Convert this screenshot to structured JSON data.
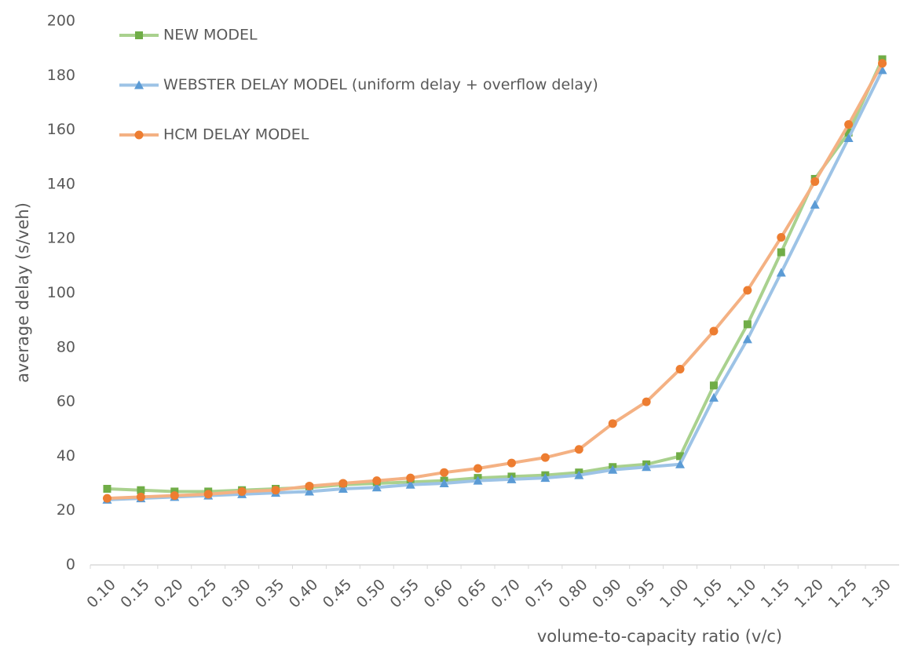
{
  "chart_data": {
    "type": "line",
    "x_label": "volume-to-capacity ratio (v/c)",
    "y_label": "average delay (s/veh)",
    "categories": [
      "0.10",
      "0.15",
      "0.20",
      "0.25",
      "0.30",
      "0.35",
      "0.40",
      "0.45",
      "0.50",
      "0.55",
      "0.60",
      "0.65",
      "0.70",
      "0.75",
      "0.80",
      "0.90",
      "0.95",
      "1.00",
      "1.05",
      "1.10",
      "1.15",
      "1.20",
      "1.25",
      "1.30"
    ],
    "ylim": [
      0,
      200
    ],
    "yticks": [
      0,
      20,
      40,
      60,
      80,
      100,
      120,
      140,
      160,
      180,
      200
    ],
    "grid": false,
    "legend": "top-left",
    "series": [
      {
        "name": "NEW MODEL",
        "color": "#70ad47",
        "line_color": "#a9d18e",
        "marker": "square",
        "values": [
          28,
          27.5,
          27,
          27,
          27.5,
          28,
          28.5,
          29.5,
          30,
          30.5,
          31,
          32,
          32.5,
          33,
          34,
          36,
          37,
          40,
          66,
          88.5,
          115,
          142,
          159,
          186
        ]
      },
      {
        "name": "WEBSTER DELAY MODEL (uniform delay + overflow delay)",
        "color": "#5b9bd5",
        "line_color": "#9dc3e6",
        "marker": "triangle",
        "values": [
          24,
          24.5,
          25,
          25.5,
          26,
          26.5,
          27,
          28,
          28.5,
          29.5,
          30,
          31,
          31.5,
          32,
          33,
          35,
          36,
          37,
          61.5,
          83,
          107.5,
          132.5,
          157,
          182
        ]
      },
      {
        "name": "HCM DELAY MODEL",
        "color": "#ed7d31",
        "line_color": "#f4b183",
        "marker": "circle",
        "values": [
          24.5,
          25,
          25.5,
          26,
          27,
          27.5,
          29,
          30,
          31,
          32,
          34,
          35.5,
          37.5,
          39.5,
          42.5,
          52,
          60,
          72,
          86,
          101,
          120.5,
          141,
          162,
          184.5
        ]
      }
    ]
  }
}
